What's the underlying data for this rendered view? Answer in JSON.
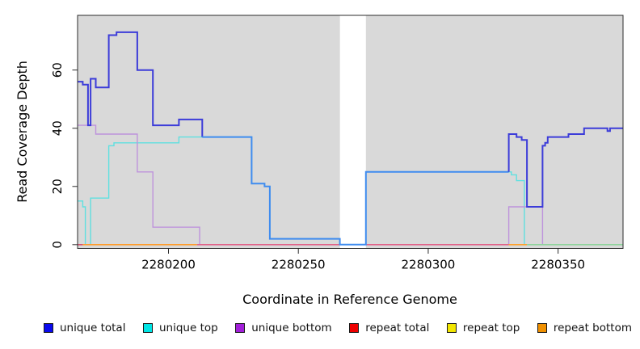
{
  "chart_data": {
    "type": "line",
    "subtype": "step-coverage-plot",
    "title": "",
    "xlabel": "Coordinate in Reference Genome",
    "ylabel": "Read Coverage Depth",
    "xlim": [
      2280165,
      2280375
    ],
    "ylim": [
      -1.3,
      78.8
    ],
    "plot_bg": "#d9d9d9",
    "box_color": "#2b2b2b",
    "grid": false,
    "xticks": [
      {
        "value": 2280200,
        "label": "2280200"
      },
      {
        "value": 2280250,
        "label": "2280250"
      },
      {
        "value": 2280300,
        "label": "2280300"
      },
      {
        "value": 2280350,
        "label": "2280350"
      }
    ],
    "yticks": [
      {
        "value": 0,
        "label": "0"
      },
      {
        "value": 20,
        "label": "20"
      },
      {
        "value": 40,
        "label": "40"
      },
      {
        "value": 60,
        "label": "60"
      }
    ],
    "gap_region": {
      "from": 2280266,
      "to": 2280276,
      "color": "#ffffff"
    },
    "series": [
      {
        "name": "unique top",
        "color": "#5FE0E0",
        "width": 1.4,
        "points": [
          [
            2280165,
            15
          ],
          [
            2280167,
            15
          ],
          [
            2280167,
            13
          ],
          [
            2280168,
            13
          ],
          [
            2280168,
            0
          ],
          [
            2280170,
            0
          ],
          [
            2280170,
            16
          ],
          [
            2280177,
            16
          ],
          [
            2280177,
            34
          ],
          [
            2280179,
            34
          ],
          [
            2280179,
            35
          ],
          [
            2280204,
            35
          ],
          [
            2280204,
            37
          ],
          [
            2280232,
            37
          ],
          [
            2280232,
            21
          ],
          [
            2280237,
            21
          ],
          [
            2280237,
            20
          ],
          [
            2280239,
            20
          ],
          [
            2280239,
            2
          ],
          [
            2280266,
            2
          ],
          [
            2280266,
            0
          ],
          [
            2280276,
            0
          ],
          [
            2280276,
            25
          ],
          [
            2280332,
            25
          ],
          [
            2280332,
            24
          ],
          [
            2280334,
            24
          ],
          [
            2280334,
            22
          ],
          [
            2280337,
            22
          ],
          [
            2280337,
            0
          ],
          [
            2280375,
            0
          ]
        ]
      },
      {
        "name": "unique bottom",
        "color": "#BE93DC",
        "width": 1.4,
        "points": [
          [
            2280165,
            41
          ],
          [
            2280172,
            41
          ],
          [
            2280172,
            38
          ],
          [
            2280188,
            38
          ],
          [
            2280188,
            25
          ],
          [
            2280194,
            25
          ],
          [
            2280194,
            6
          ],
          [
            2280212,
            6
          ],
          [
            2280212,
            0
          ],
          [
            2280331,
            0
          ],
          [
            2280331,
            13
          ],
          [
            2280344,
            13
          ],
          [
            2280344,
            0
          ],
          [
            2280375,
            0
          ]
        ]
      },
      {
        "name": "unique total",
        "width": 2,
        "segments": [
          {
            "color": "#3C3CD9",
            "points": [
              [
                2280165,
                56
              ],
              [
                2280167,
                56
              ],
              [
                2280167,
                55
              ],
              [
                2280169,
                55
              ],
              [
                2280169,
                41
              ],
              [
                2280170,
                41
              ],
              [
                2280170,
                57
              ],
              [
                2280172,
                57
              ],
              [
                2280172,
                54
              ],
              [
                2280177,
                54
              ],
              [
                2280177,
                72
              ],
              [
                2280180,
                72
              ],
              [
                2280180,
                73
              ],
              [
                2280188,
                73
              ],
              [
                2280188,
                60
              ],
              [
                2280194,
                60
              ],
              [
                2280194,
                41
              ],
              [
                2280204,
                41
              ],
              [
                2280204,
                43
              ],
              [
                2280213,
                43
              ],
              [
                2280213,
                37
              ]
            ]
          },
          {
            "color": "#3F8CEF",
            "points": [
              [
                2280213,
                37
              ],
              [
                2280232,
                37
              ],
              [
                2280232,
                21
              ],
              [
                2280237,
                21
              ],
              [
                2280237,
                20
              ],
              [
                2280239,
                20
              ],
              [
                2280239,
                2
              ],
              [
                2280266,
                2
              ],
              [
                2280266,
                0
              ],
              [
                2280276,
                0
              ],
              [
                2280276,
                25
              ],
              [
                2280331,
                25
              ]
            ]
          },
          {
            "color": "#3C3CD9",
            "points": [
              [
                2280331,
                25
              ],
              [
                2280331,
                38
              ],
              [
                2280334,
                38
              ],
              [
                2280334,
                37
              ],
              [
                2280336,
                37
              ],
              [
                2280336,
                36
              ],
              [
                2280338,
                36
              ],
              [
                2280338,
                13
              ],
              [
                2280344,
                13
              ],
              [
                2280344,
                34
              ],
              [
                2280345,
                34
              ],
              [
                2280345,
                35
              ],
              [
                2280346,
                35
              ],
              [
                2280346,
                37
              ],
              [
                2280354,
                37
              ],
              [
                2280354,
                38
              ],
              [
                2280360,
                38
              ],
              [
                2280360,
                40
              ],
              [
                2280369,
                40
              ],
              [
                2280369,
                39
              ],
              [
                2280370,
                39
              ],
              [
                2280370,
                40
              ],
              [
                2280375,
                40
              ]
            ]
          }
        ]
      }
    ],
    "baseline_segments": [
      {
        "from": 2280165,
        "to": 2280167,
        "value": 0,
        "color": "#D94A6A"
      },
      {
        "from": 2280167,
        "to": 2280211,
        "value": 0,
        "color": "#FF9A28"
      },
      {
        "from": 2280211,
        "to": 2280331,
        "value": 0,
        "color": "#E06088"
      },
      {
        "from": 2280331,
        "to": 2280338,
        "value": 0,
        "color": "#FFA028"
      },
      {
        "from": 2280338,
        "to": 2280375,
        "value": 0,
        "color": "#8FD49C"
      }
    ]
  },
  "legend": {
    "items": [
      {
        "label": "unique total",
        "color": "#0A0AEE"
      },
      {
        "label": "unique top",
        "color": "#00E5E5"
      },
      {
        "label": "unique bottom",
        "color": "#A21FD9"
      },
      {
        "label": "repeat total",
        "color": "#EE0000"
      },
      {
        "label": "repeat top",
        "color": "#F2E600"
      },
      {
        "label": "repeat bottom",
        "color": "#F09000"
      }
    ]
  }
}
